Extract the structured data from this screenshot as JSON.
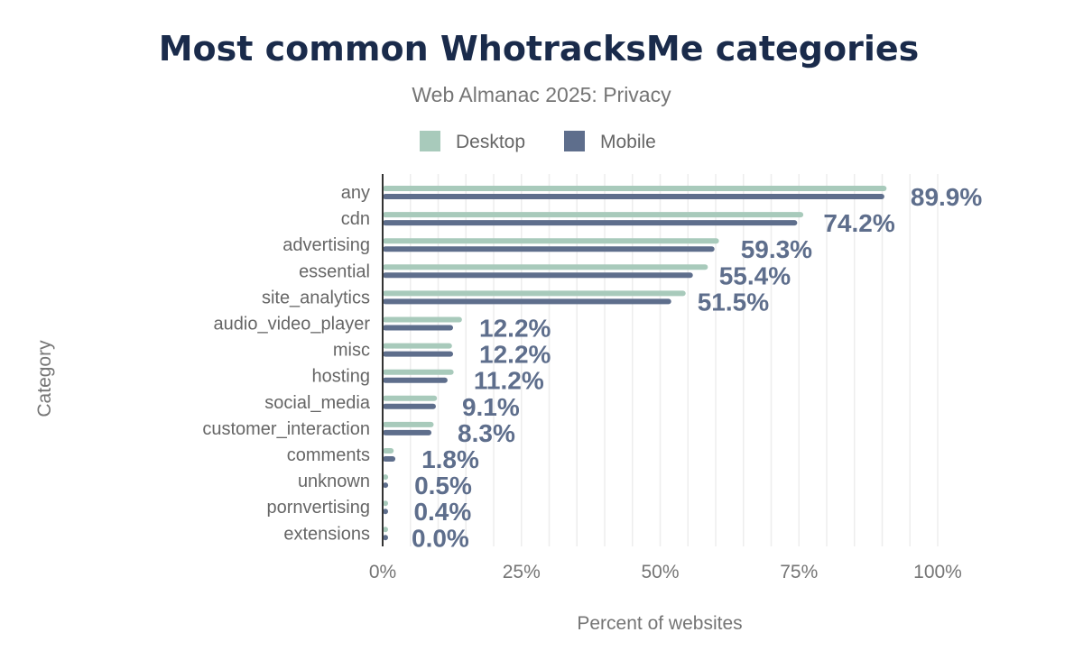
{
  "chart_data": {
    "type": "bar",
    "orientation": "horizontal",
    "title": "Most common WhotracksMe categories",
    "subtitle": "Web Almanac 2025: Privacy",
    "xlabel": "Percent of websites",
    "ylabel": "Category",
    "xlim": [
      0,
      100
    ],
    "x_ticks": [
      "0%",
      "25%",
      "50%",
      "75%",
      "100%"
    ],
    "grid": true,
    "legend_position": "top",
    "categories": [
      "any",
      "cdn",
      "advertising",
      "essential",
      "site_analytics",
      "audio_video_player",
      "misc",
      "hosting",
      "social_media",
      "customer_interaction",
      "comments",
      "unknown",
      "pornvertising",
      "extensions"
    ],
    "series": [
      {
        "name": "Desktop",
        "color": "#a8cabb",
        "values": [
          90.3,
          75.3,
          60.1,
          58.1,
          54.1,
          13.8,
          12.0,
          12.3,
          9.3,
          8.7,
          1.5,
          0.5,
          0.1,
          0.0
        ]
      },
      {
        "name": "Mobile",
        "color": "#5e6e8c",
        "values": [
          89.9,
          74.2,
          59.3,
          55.4,
          51.5,
          12.2,
          12.2,
          11.2,
          9.1,
          8.3,
          1.8,
          0.5,
          0.4,
          0.0
        ]
      }
    ],
    "data_labels": [
      "89.9%",
      "74.2%",
      "59.3%",
      "55.4%",
      "51.5%",
      "12.2%",
      "12.2%",
      "11.2%",
      "9.1%",
      "8.3%",
      "1.8%",
      "0.5%",
      "0.4%",
      "0.0%"
    ]
  }
}
